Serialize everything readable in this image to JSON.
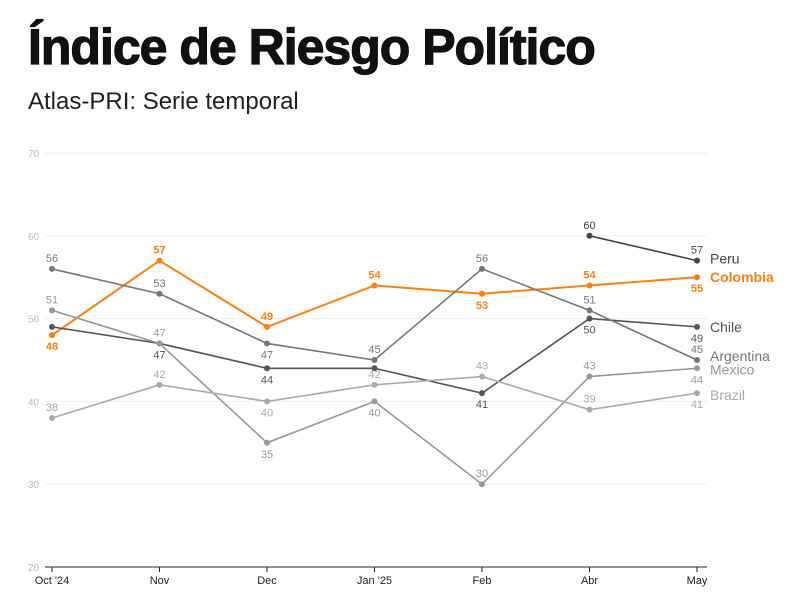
{
  "title": "Índice de Riesgo Político",
  "subtitle": "Atlas-PRI: Serie temporal",
  "chart_data": {
    "type": "line",
    "title": "Índice de Riesgo Político",
    "subtitle": "Atlas-PRI: Serie temporal",
    "categories": [
      "Oct '24",
      "Nov",
      "Dec",
      "Jan '25",
      "Feb",
      "Abr",
      "May"
    ],
    "ylim": [
      20,
      70
    ],
    "yticks": [
      20,
      30,
      40,
      50,
      60,
      70
    ],
    "grid": true,
    "legend": "direct labels at line ends (right)",
    "series": [
      {
        "name": "Peru",
        "color": "#444444",
        "values": [
          null,
          null,
          null,
          null,
          null,
          60,
          57
        ]
      },
      {
        "name": "Colombia",
        "color": "#ff7f0e",
        "values": [
          48,
          57,
          49,
          54,
          53,
          54,
          55
        ]
      },
      {
        "name": "Chile",
        "color": "#555555",
        "values": [
          49,
          47,
          44,
          44,
          41,
          50,
          49
        ]
      },
      {
        "name": "Argentina",
        "color": "#777777",
        "values": [
          56,
          53,
          47,
          45,
          56,
          51,
          45
        ]
      },
      {
        "name": "Mexico",
        "color": "#999999",
        "values": [
          51,
          47,
          35,
          40,
          30,
          43,
          44
        ]
      },
      {
        "name": "Brazil",
        "color": "#aaaaaa",
        "values": [
          38,
          42,
          40,
          42,
          43,
          39,
          41
        ]
      }
    ]
  }
}
